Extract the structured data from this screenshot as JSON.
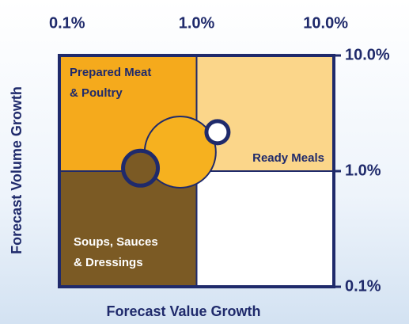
{
  "chart_data": {
    "type": "bubble",
    "x_label": "Forecast Value Growth",
    "y_label": "Forecast Volume Growth",
    "xscale": "log",
    "yscale": "log",
    "xlim": [
      0.1,
      10
    ],
    "ylim": [
      0.1,
      10
    ],
    "xticks": [
      {
        "value": 0.1,
        "label": "0.1%"
      },
      {
        "value": 1,
        "label": "1.0%"
      },
      {
        "value": 10,
        "label": "10.0%"
      }
    ],
    "yticks": [
      {
        "value": 10,
        "label": "10.0%"
      },
      {
        "value": 1,
        "label": "1.0%"
      },
      {
        "value": 0.1,
        "label": "0.1%"
      }
    ],
    "quadrants": [
      {
        "label": [
          "Prepared Meat",
          "& Poultry"
        ],
        "x": [
          0.1,
          1
        ],
        "y": [
          1,
          10
        ],
        "color": "#f5aa1c"
      },
      {
        "label": [
          "Ready Meals"
        ],
        "x": [
          1,
          10
        ],
        "y": [
          1,
          10
        ],
        "color": "#fbd68a"
      },
      {
        "label": [
          "Soups, Sauces",
          "& Dressings"
        ],
        "x": [
          0.1,
          1
        ],
        "y": [
          0.1,
          1
        ],
        "color": "#7b5a24"
      },
      {
        "x": [
          1,
          10
        ],
        "y": [
          0.1,
          1
        ],
        "color": "#ffffff"
      }
    ],
    "bubbles": {
      "x": [
        0.76,
        1.42,
        0.39
      ],
      "y": [
        1.46,
        2.17,
        1.06
      ],
      "size": [
        45,
        14,
        22
      ],
      "colors": [
        "#f6b11f",
        "#ffffff",
        "#7b5a24"
      ],
      "edgecolor": "#1f2a6b"
    }
  }
}
